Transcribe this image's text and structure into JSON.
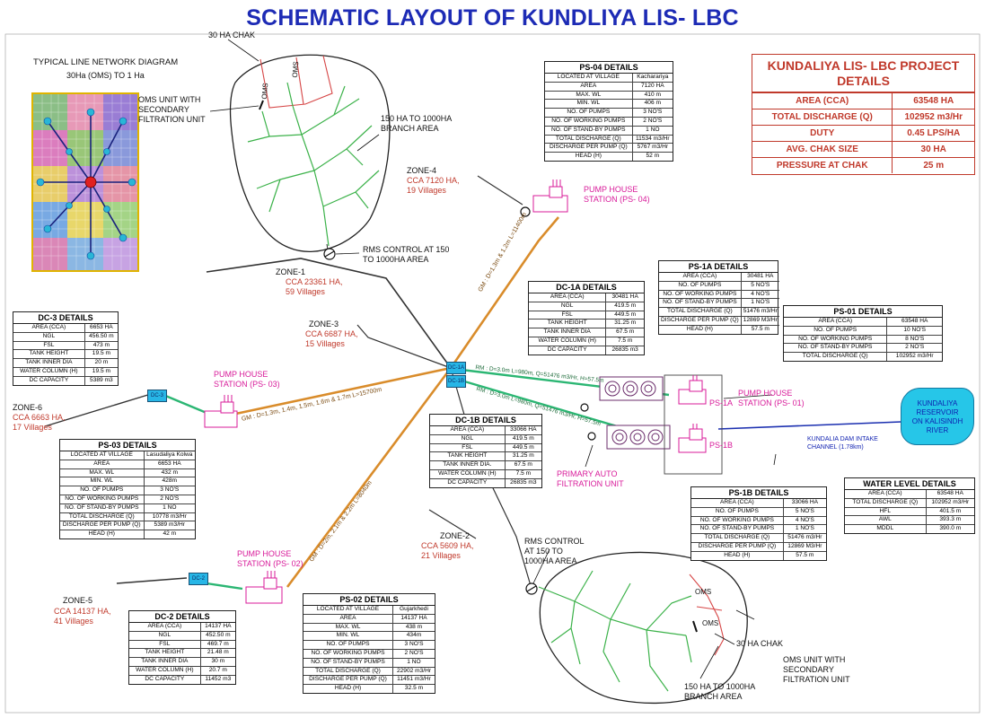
{
  "title": "SCHEMATIC LAYOUT OF KUNDLIYA LIS- LBC",
  "network_title": "TYPICAL LINE NETWORK DIAGRAM",
  "network_sub": "30Ha (OMS) TO 1 Ha",
  "project": {
    "heading_line1": "KUNDALIYA LIS- LBC PROJECT",
    "heading_line2": "DETAILS",
    "rows": [
      [
        "AREA (CCA)",
        "63548 HA"
      ],
      [
        "TOTAL DISCHARGE (Q)",
        "102952 m3/Hr"
      ],
      [
        "DUTY",
        "0.45 LPS/HA"
      ],
      [
        "AVG. CHAK SIZE",
        "30 HA"
      ],
      [
        "PRESSURE AT CHAK",
        "25 m"
      ]
    ]
  },
  "tables": {
    "ps04": {
      "title": "PS-04 DETAILS",
      "rows": [
        [
          "LOCATED AT VILLAGE",
          "Kacharariya"
        ],
        [
          "AREA",
          "7120 HA"
        ],
        [
          "MAX. WL",
          "410 m"
        ],
        [
          "MIN. WL",
          "406 m"
        ],
        [
          "NO. OF PUMPS",
          "3 NO'S"
        ],
        [
          "NO. OF WORKING PUMPS",
          "2 NO'S"
        ],
        [
          "NO. OF STAND-BY PUMPS",
          "1 NO"
        ],
        [
          "TOTAL DISCHARGE (Q)",
          "11534 m3/Hr"
        ],
        [
          "DISCHARGE PER PUMP (Q)",
          "5767 m3/Hr"
        ],
        [
          "HEAD (H)",
          "52 m"
        ]
      ]
    },
    "ps1a": {
      "title": "PS-1A DETAILS",
      "rows": [
        [
          "AREA (CCA)",
          "30481 HA"
        ],
        [
          "NO. OF PUMPS",
          "5 NO'S"
        ],
        [
          "NO. OF WORKING PUMPS",
          "4 NO'S"
        ],
        [
          "NO. OF STAND-BY PUMPS",
          "1 NO'S"
        ],
        [
          "TOTAL DISCHARGE (Q)",
          "51476 m3/Hr"
        ],
        [
          "DISCHARGE PER PUMP (Q)",
          "12869 M3/Hr"
        ],
        [
          "HEAD (H)",
          "57.5 m"
        ]
      ]
    },
    "ps01": {
      "title": "PS-01 DETAILS",
      "rows": [
        [
          "AREA (CCA)",
          "63548 HA"
        ],
        [
          "NO. OF PUMPS",
          "10 NO'S"
        ],
        [
          "NO. OF WORKING PUMPS",
          "8 NO'S"
        ],
        [
          "NO. OF STAND-BY PUMPS",
          "2 NO'S"
        ],
        [
          "TOTAL DISCHARGE (Q)",
          "102952 m3/Hr"
        ]
      ]
    },
    "dc1a": {
      "title": "DC-1A DETAILS",
      "rows": [
        [
          "AREA (CCA)",
          "30481 HA"
        ],
        [
          "NGL",
          "419.5 m"
        ],
        [
          "FSL",
          "449.5 m"
        ],
        [
          "TANK HEIGHT",
          "31.25 m"
        ],
        [
          "TANK INNER DIA",
          "67.5 m"
        ],
        [
          "WATER COLUMN (H)",
          "7.5 m"
        ],
        [
          "DC CAPACITY",
          "26835 m3"
        ]
      ]
    },
    "dc1b": {
      "title": "DC-1B DETAILS",
      "rows": [
        [
          "AREA (CCA)",
          "33066 HA"
        ],
        [
          "NGL",
          "419.5 m"
        ],
        [
          "FSL",
          "449.5 m"
        ],
        [
          "TANK HEIGHT",
          "31.25 m"
        ],
        [
          "TANK INNER DIA.",
          "67.5 m"
        ],
        [
          "WATER COLUMN (H)",
          "7.5 m"
        ],
        [
          "DC CAPACITY",
          "26835 m3"
        ]
      ]
    },
    "dc3": {
      "title": "DC-3 DETAILS",
      "rows": [
        [
          "AREA (CCA)",
          "6653 HA"
        ],
        [
          "NGL",
          "456.50 m"
        ],
        [
          "FSL",
          "473 m"
        ],
        [
          "TANK HEIGHT",
          "19.5 m"
        ],
        [
          "TANK INNER DIA",
          "20 m"
        ],
        [
          "WATER COLUMN (H)",
          "19.5 m"
        ],
        [
          "DC CAPACITY",
          "5389 m3"
        ]
      ]
    },
    "ps03": {
      "title": "PS-03 DETAILS",
      "rows": [
        [
          "LOCATED AT VILLAGE",
          "Lasudaliya Kolwa"
        ],
        [
          "AREA",
          "6653 HA"
        ],
        [
          "MAX. WL",
          "432 m"
        ],
        [
          "MIN. WL",
          "428m"
        ],
        [
          "NO. OF PUMPS",
          "3 NO'S"
        ],
        [
          "NO. OF WORKING PUMPS",
          "2 NO'S"
        ],
        [
          "NO. OF STAND-BY PUMPS",
          "1 NO"
        ],
        [
          "TOTAL DISCHARGE (Q)",
          "10778 m3/Hr"
        ],
        [
          "DISCHARGE PER PUMP (Q)",
          "5389 m3/Hr"
        ],
        [
          "HEAD (H)",
          "42 m"
        ]
      ]
    },
    "ps1b": {
      "title": "PS-1B DETAILS",
      "rows": [
        [
          "AREA (CCA)",
          "33066 HA"
        ],
        [
          "NO. OF PUMPS",
          "5 NO'S"
        ],
        [
          "NO. OF WORKING PUMPS",
          "4 NO'S"
        ],
        [
          "NO. OF STAND-BY PUMPS",
          "1 NO'S"
        ],
        [
          "TOTAL DISCHARGE (Q)",
          "51476 m3/Hr"
        ],
        [
          "DISCHARGE PER PUMP (Q)",
          "12869 M3/Hr"
        ],
        [
          "HEAD (H)",
          "57.5 m"
        ]
      ]
    },
    "wl": {
      "title": "WATER LEVEL DETAILS",
      "rows": [
        [
          "AREA (CCA)",
          "63548 HA"
        ],
        [
          "TOTAL DISCHARGE (Q)",
          "102952 m3/Hr"
        ],
        [
          "HFL",
          "401.5 m"
        ],
        [
          "AWL",
          "393.3 m"
        ],
        [
          "MDDL",
          "390.0 m"
        ]
      ]
    },
    "dc2": {
      "title": "DC-2 DETAILS",
      "rows": [
        [
          "AREA (CCA)",
          "14137 HA"
        ],
        [
          "NGL",
          "452.50 m"
        ],
        [
          "FSL",
          "469.7 m"
        ],
        [
          "TANK HEIGHT",
          "21.48 m"
        ],
        [
          "TANK INNER DIA",
          "30 m"
        ],
        [
          "WATER COLUMN (H)",
          "20.7 m"
        ],
        [
          "DC CAPACITY",
          "11452 m3"
        ]
      ]
    },
    "ps02": {
      "title": "PS-02 DETAILS",
      "rows": [
        [
          "LOCATED AT VILLAGE",
          "Gujarkhedi"
        ],
        [
          "AREA",
          "14137 HA"
        ],
        [
          "MAX. WL",
          "438 m"
        ],
        [
          "MIN. WL",
          "434m"
        ],
        [
          "NO. OF PUMPS",
          "3 NO'S"
        ],
        [
          "NO. OF WORKING PUMPS",
          "2 NO'S"
        ],
        [
          "NO. OF STAND-BY PUMPS",
          "1 NO"
        ],
        [
          "TOTAL DISCHARGE (Q)",
          "22902 m3/Hr"
        ],
        [
          "DISCHARGE PER PUMP (Q)",
          "11451 m3/Hr"
        ],
        [
          "HEAD (H)",
          "32.5 m"
        ]
      ]
    }
  },
  "labels": {
    "chak_top": "30 HA CHAK",
    "oms_unit_top": "OMS UNIT WITH\nSECONDARY\nFILTRATION UNIT",
    "branch_top": "150 HA TO 1000HA\nBRANCH AREA",
    "oms": "OMS",
    "zone4": "ZONE-4",
    "zone4_cca": "CCA 7120 HA,\n19 Villages",
    "ph4": "PUMP HOUSE\nSTATION (PS- 04)",
    "rms_top": "RMS CONTROL AT 150\nTO 1000HA AREA",
    "zone1": "ZONE-1",
    "zone1_cca": "CCA 23361 HA,\n59 Villages",
    "zone3": "ZONE-3",
    "zone3_cca": "CCA 6687 HA,\n15 Villages",
    "ph3": "PUMP HOUSE\nSTATION (PS- 03)",
    "zone6": "ZONE-6",
    "zone6_cca": "CCA 6663 HA,\n17 Villages",
    "gm_ps4": "GM : D=1.3m & 1.2m L=11400m",
    "gm_ps3": "GM : D=1.3m, 1.4m, 1.5m, 1.6m & 1.7m L=15700m",
    "gm_ps2": "GM : D=2m, 2.1m & 2.2m L=8040m",
    "rm_a": "RM : D=3.0m L=980m, Q=51476 m3/Hr, H=57.5m",
    "rm_b": "RM : D=3.0m L=980m, Q=51476 m3/Hr, H=57.5m",
    "dc1a_tag": "DC-1A",
    "dc1b_tag": "DC-1B",
    "dc3_tag": "DC-3",
    "dc2_tag": "DC-2",
    "ps1a": "PS-1A",
    "ps1b": "PS-1B",
    "ph1": "PUMP HOUSE\nSTATION (PS- 01)",
    "reservoir": "KUNDALIYA\nRESERVOIR\nON KALISINDH\nRIVER",
    "intake": "KUNDALIA DAM INTAKE\nCHANNEL (1.78km)",
    "filtration": "PRIMARY AUTO\nFILTRATION UNIT",
    "zone2": "ZONE-2",
    "zone2_cca": "CCA 5609 HA,\n21 Villages",
    "rms_bottom": "RMS CONTROL\nAT 150 TO\n1000HA AREA",
    "ph2": "PUMP HOUSE\nSTATION (PS- 02)",
    "zone5": "ZONE-5",
    "zone5_cca": "CCA 14137 HA,\n41 Villages",
    "chak_bottom": "30 HA CHAK",
    "oms_unit_bottom": "OMS UNIT WITH\nSECONDARY\nFILTRATION UNIT",
    "branch_bottom": "150 HA TO 1000HA\nBRANCH  AREA"
  },
  "colors": {
    "title": "#1d2bb5",
    "red": "#c0392b",
    "pink": "#d81b9a",
    "gm_pipe": "#d98c2b",
    "rm_pipe": "#2bb673",
    "pipe": "#333333",
    "reservoir": "#26c6e8"
  }
}
